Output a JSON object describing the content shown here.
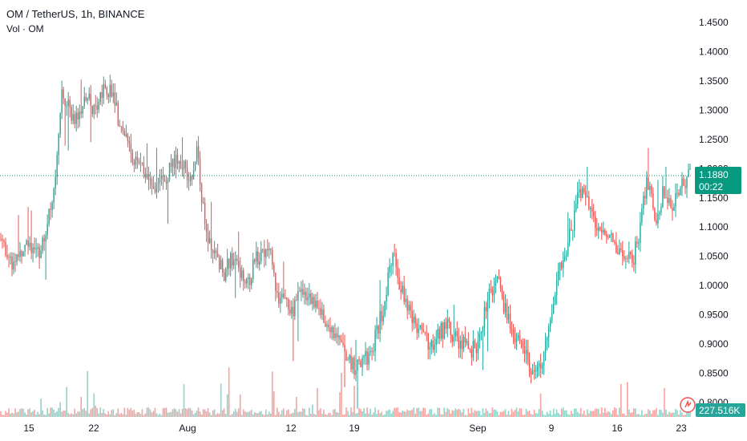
{
  "legend": {
    "title": "OM / TetherUS, 1h, BINANCE",
    "volume": "Vol · OM"
  },
  "colors": {
    "up": "#26a69a",
    "down": "#ef5350",
    "up_volume": "#8fd3c9",
    "down_volume": "#f5a3a1",
    "last_price": "#089981"
  },
  "price_badge": {
    "price": "1.1880",
    "countdown": "00:22"
  },
  "volume_badge": {
    "value": "227.516K"
  },
  "alert_icon": "bell-clock-icon",
  "chart_data": {
    "type": "candlestick",
    "title": "OM / TetherUS, 1h, BINANCE",
    "ylim": [
      0.8,
      1.45
    ],
    "y_ticks": [
      "1.4500",
      "1.4000",
      "1.3500",
      "1.3000",
      "1.2500",
      "1.2000",
      "1.1500",
      "1.1000",
      "1.0500",
      "1.0000",
      "0.9500",
      "0.9000",
      "0.8500",
      "0.8000"
    ],
    "x_ticks": [
      "15",
      "22",
      "Aug",
      "12",
      "19",
      "Sep",
      "9",
      "16",
      "23"
    ],
    "last_price": 1.188,
    "close_path": [
      [
        0,
        1.08
      ],
      [
        3,
        1.04
      ],
      [
        6,
        1.07
      ],
      [
        10,
        1.06
      ],
      [
        12,
        1.1
      ],
      [
        14,
        1.18
      ],
      [
        15,
        1.27
      ],
      [
        16,
        1.33
      ],
      [
        18,
        1.3
      ],
      [
        20,
        1.28
      ],
      [
        22,
        1.32
      ],
      [
        25,
        1.3
      ],
      [
        27,
        1.34
      ],
      [
        29,
        1.33
      ],
      [
        31,
        1.27
      ],
      [
        33,
        1.25
      ],
      [
        35,
        1.21
      ],
      [
        37,
        1.2
      ],
      [
        40,
        1.16
      ],
      [
        43,
        1.19
      ],
      [
        46,
        1.22
      ],
      [
        49,
        1.18
      ],
      [
        51,
        1.23
      ],
      [
        52,
        1.16
      ],
      [
        54,
        1.08
      ],
      [
        56,
        1.05
      ],
      [
        58,
        1.02
      ],
      [
        60,
        1.05
      ],
      [
        62,
        1.03
      ],
      [
        64,
        1.0
      ],
      [
        66,
        1.04
      ],
      [
        68,
        1.06
      ],
      [
        69,
        1.06
      ],
      [
        70,
        1.05
      ],
      [
        72,
        0.98
      ],
      [
        74,
        0.97
      ],
      [
        76,
        0.96
      ],
      [
        78,
        1.0
      ],
      [
        80,
        0.98
      ],
      [
        82,
        0.96
      ],
      [
        84,
        0.94
      ],
      [
        86,
        0.93
      ],
      [
        88,
        0.9
      ],
      [
        90,
        0.88
      ],
      [
        92,
        0.86
      ],
      [
        94,
        0.87
      ],
      [
        96,
        0.88
      ],
      [
        98,
        0.93
      ],
      [
        100,
        0.98
      ],
      [
        101,
        1.04
      ],
      [
        102,
        1.06
      ],
      [
        104,
        0.99
      ],
      [
        106,
        0.96
      ],
      [
        108,
        0.93
      ],
      [
        110,
        0.92
      ],
      [
        112,
        0.89
      ],
      [
        114,
        0.92
      ],
      [
        116,
        0.93
      ],
      [
        118,
        0.91
      ],
      [
        120,
        0.9
      ],
      [
        122,
        0.89
      ],
      [
        124,
        0.9
      ],
      [
        126,
        0.97
      ],
      [
        128,
        1.0
      ],
      [
        129,
        1.02
      ],
      [
        130,
        0.98
      ],
      [
        132,
        0.94
      ],
      [
        134,
        0.91
      ],
      [
        136,
        0.88
      ],
      [
        138,
        0.86
      ],
      [
        140,
        0.86
      ],
      [
        142,
        0.91
      ],
      [
        143,
        0.95
      ],
      [
        145,
        1.02
      ],
      [
        147,
        1.07
      ],
      [
        149,
        1.12
      ],
      [
        150,
        1.16
      ],
      [
        152,
        1.15
      ],
      [
        154,
        1.11
      ],
      [
        156,
        1.1
      ],
      [
        158,
        1.08
      ],
      [
        160,
        1.06
      ],
      [
        162,
        1.05
      ],
      [
        164,
        1.04
      ],
      [
        166,
        1.09
      ],
      [
        167,
        1.15
      ],
      [
        168,
        1.18
      ],
      [
        170,
        1.11
      ],
      [
        172,
        1.16
      ],
      [
        174,
        1.13
      ],
      [
        176,
        1.16
      ],
      [
        178,
        1.18
      ],
      [
        179,
        1.188
      ]
    ],
    "volume_ylim": [
      0,
      1
    ],
    "volume_last": "227.516K"
  }
}
